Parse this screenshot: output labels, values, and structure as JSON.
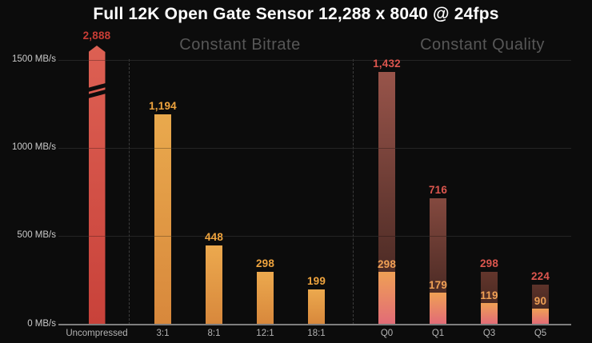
{
  "title": "Full 12K Open Gate Sensor 12,288 x 8040 @ 24fps",
  "background_color": "#0c0c0c",
  "sections": [
    {
      "label": "Constant Bitrate"
    },
    {
      "label": "Constant Quality"
    }
  ],
  "chart_data": {
    "type": "bar",
    "title": "Full 12K Open Gate Sensor 12,288 x 8040 @ 24fps",
    "xlabel": "",
    "ylabel": "MB/s",
    "ylim": [
      0,
      1580
    ],
    "grid": true,
    "legend": "none",
    "y_axis": {
      "ticks": [
        {
          "value": 0,
          "label": "0 MB/s"
        },
        {
          "value": 500,
          "label": "500 MB/s"
        },
        {
          "value": 1000,
          "label": "1000 MB/s"
        },
        {
          "value": 1500,
          "label": "1500 MB/s"
        }
      ]
    },
    "categories": [
      "Uncompressed",
      "3:1",
      "8:1",
      "12:1",
      "18:1",
      "Q0",
      "Q1",
      "Q3",
      "Q5"
    ],
    "series": [
      {
        "name": "Total data rate (MB/s)",
        "values": [
          2888,
          1194,
          448,
          298,
          199,
          1432,
          716,
          298,
          224
        ]
      },
      {
        "name": "Secondary data rate (MB/s)",
        "values": [
          null,
          null,
          null,
          null,
          null,
          298,
          179,
          119,
          90
        ]
      }
    ],
    "groups": [
      {
        "label": "Constant Bitrate",
        "categories": [
          "3:1",
          "8:1",
          "12:1",
          "18:1"
        ]
      },
      {
        "label": "Constant Quality",
        "categories": [
          "Q0",
          "Q1",
          "Q3",
          "Q5"
        ]
      }
    ],
    "annotations": {
      "axis_break_on": "Uncompressed",
      "note": "Uncompressed bar exceeds the 1500 MB/s axis and is drawn clipped with a break mark and pointed top"
    },
    "bars": [
      {
        "category": "Uncompressed",
        "value": 2888,
        "value_label": "2,888",
        "label_color": "#c93d35",
        "fill": [
          "#dd6053",
          "#c8423a"
        ],
        "clipped": true
      },
      {
        "category": "3:1",
        "value": 1194,
        "value_label": "1,194",
        "label_color": "#efa43e",
        "fill": [
          "#e9a94d",
          "#d8883c"
        ]
      },
      {
        "category": "8:1",
        "value": 448,
        "value_label": "448",
        "label_color": "#efa43e",
        "fill": [
          "#eca94e",
          "#d8883c"
        ]
      },
      {
        "category": "12:1",
        "value": 298,
        "value_label": "298",
        "label_color": "#efa43e",
        "fill": [
          "#eca94e",
          "#d8883c"
        ]
      },
      {
        "category": "18:1",
        "value": 199,
        "value_label": "199",
        "label_color": "#efa43e",
        "fill": [
          "#eca94e",
          "#d8883c"
        ]
      },
      {
        "category": "Q0",
        "value": 1432,
        "value_label": "1,432",
        "label_color": "#dc564e",
        "fill": [
          "#98544a",
          "#3a211c"
        ],
        "inner_value": 298,
        "inner_label": "298",
        "inner_label_color": "#efa055",
        "inner_fill": [
          "#efa055",
          "#e26c77"
        ]
      },
      {
        "category": "Q1",
        "value": 716,
        "value_label": "716",
        "label_color": "#dc564e",
        "fill": [
          "#84493f",
          "#3a211c"
        ],
        "inner_value": 179,
        "inner_label": "179",
        "inner_label_color": "#efa055",
        "inner_fill": [
          "#efa055",
          "#e26c77"
        ]
      },
      {
        "category": "Q3",
        "value": 298,
        "value_label": "298",
        "label_color": "#dc564e",
        "fill": [
          "#63362c",
          "#3a211c"
        ],
        "inner_value": 119,
        "inner_label": "119",
        "inner_label_color": "#efa055",
        "inner_fill": [
          "#efa055",
          "#e26c77"
        ]
      },
      {
        "category": "Q5",
        "value": 224,
        "value_label": "224",
        "label_color": "#dc564e",
        "fill": [
          "#5d332a",
          "#3a211c"
        ],
        "inner_value": 90,
        "inner_label": "90",
        "inner_label_color": "#efa055",
        "inner_fill": [
          "#efa055",
          "#e26c77"
        ]
      }
    ]
  }
}
